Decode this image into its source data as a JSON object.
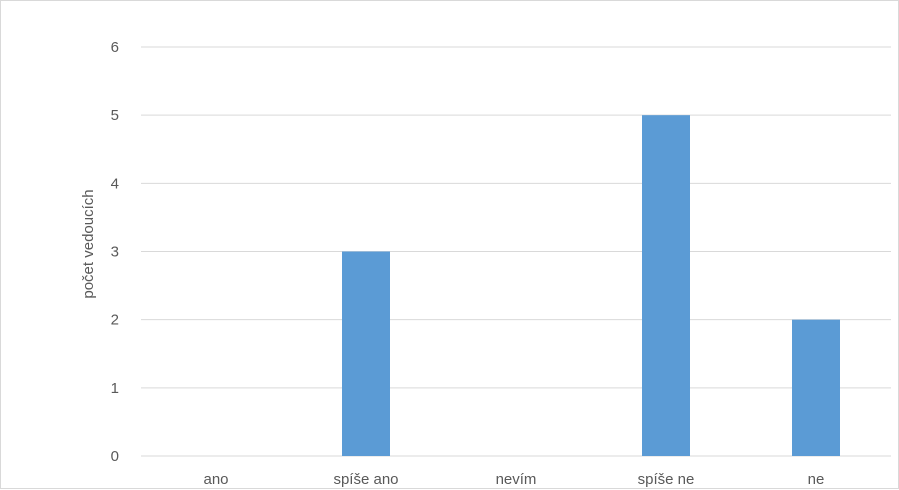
{
  "chart_data": {
    "type": "bar",
    "categories": [
      "ano",
      "spíše ano",
      "nevím",
      "spíše ne",
      "ne"
    ],
    "series": [
      {
        "values": [
          0,
          3,
          0,
          5,
          2
        ],
        "color": "#5b9bd5"
      }
    ],
    "xlabel": "",
    "ylabel": "počet vedoucích",
    "ylim": [
      0,
      6
    ],
    "yticks": [
      0,
      1,
      2,
      3,
      4,
      5,
      6
    ],
    "grid": true,
    "gridColor": "#d9d9d9",
    "legend": "none"
  }
}
